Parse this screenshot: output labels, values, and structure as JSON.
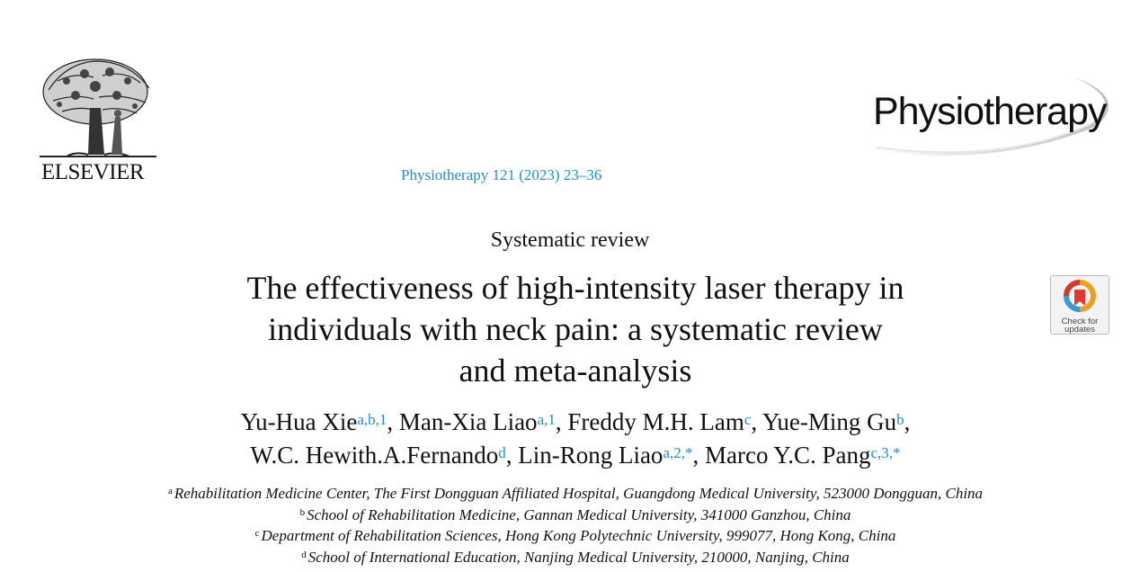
{
  "publisher": {
    "logo_text": "ELSEVIER"
  },
  "journal": {
    "logo_text": "Physiotherapy",
    "reference": "Physiotherapy 121 (2023) 23–36"
  },
  "article": {
    "type": "Systematic review",
    "title_lines": [
      "The effectiveness of high-intensity laser therapy in",
      "individuals with neck pain: a systematic review",
      "and meta-analysis"
    ]
  },
  "authors": [
    {
      "name": "Yu-Hua Xie",
      "marks": "a,b,1",
      "sep": ", "
    },
    {
      "name": "Man-Xia Liao",
      "marks": "a,1",
      "sep": ", "
    },
    {
      "name": "Freddy M.H. Lam",
      "marks": "c",
      "sep": ", "
    },
    {
      "name": "Yue-Ming Gu",
      "marks": "b",
      "sep": ","
    },
    {
      "name": "W.C. Hewith.A.Fernando",
      "marks": "d",
      "sep": ", "
    },
    {
      "name": "Lin-Rong Liao",
      "marks": "a,2,*",
      "sep": ", "
    },
    {
      "name": "Marco Y.C. Pang",
      "marks": "c,3,*",
      "sep": ""
    }
  ],
  "affiliations": [
    {
      "key": "a",
      "text": "Rehabilitation Medicine Center, The First Dongguan Affiliated Hospital, Guangdong Medical University, 523000 Dongguan, China"
    },
    {
      "key": "b",
      "text": "School of Rehabilitation Medicine, Gannan Medical University, 341000 Ganzhou, China"
    },
    {
      "key": "c",
      "text": "Department of Rehabilitation Sciences, Hong Kong Polytechnic University, 999077, Hong Kong, China"
    },
    {
      "key": "d",
      "text": "School of International Education, Nanjing Medical University, 210000, Nanjing, China"
    }
  ],
  "check_for_updates": {
    "label_line1": "Check for",
    "label_line2": "updates"
  },
  "colors": {
    "link_blue": "#1f8fc4",
    "text": "#111111"
  }
}
